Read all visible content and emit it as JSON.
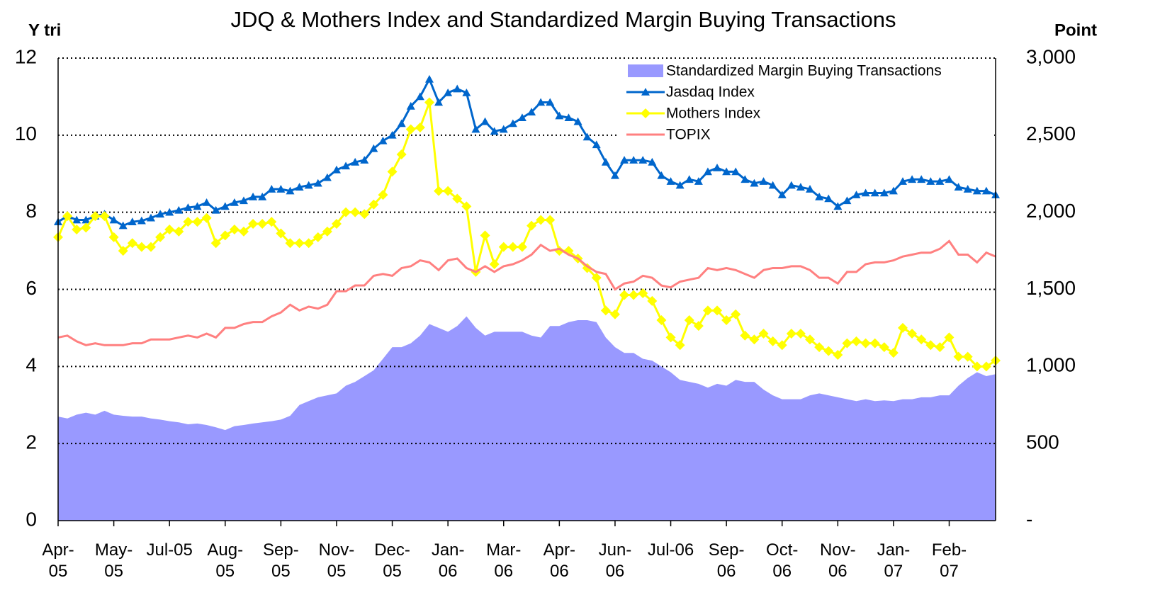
{
  "chart_data": {
    "type": "line",
    "title": "JDQ & Mothers Index and Standardized Margin Buying Transactions",
    "y_label": "Y tri",
    "y2_label": "Point",
    "categories": [
      "Apr-05",
      null,
      null,
      null,
      null,
      null,
      "May-05",
      null,
      null,
      null,
      null,
      null,
      "Jul-05",
      null,
      null,
      null,
      null,
      null,
      "Aug-05",
      null,
      null,
      null,
      null,
      null,
      "Sep-05",
      null,
      null,
      null,
      null,
      null,
      "Nov-05",
      null,
      null,
      null,
      null,
      null,
      "Dec-05",
      null,
      null,
      null,
      null,
      null,
      "Jan-06",
      null,
      null,
      null,
      null,
      null,
      "Mar-06",
      null,
      null,
      null,
      null,
      null,
      "Apr-06",
      null,
      null,
      null,
      null,
      null,
      "Jun-06",
      null,
      null,
      null,
      null,
      null,
      "Jul-06",
      null,
      null,
      null,
      null,
      null,
      "Sep-06",
      null,
      null,
      null,
      null,
      null,
      "Oct-06",
      null,
      null,
      null,
      null,
      null,
      "Nov-06",
      null,
      null,
      null,
      null,
      null,
      "Jan-07",
      null,
      null,
      null,
      null,
      null,
      "Feb-07",
      null,
      null,
      null,
      null,
      null
    ],
    "ylim": [
      0,
      12
    ],
    "yticks": [
      0,
      2,
      4,
      6,
      8,
      10,
      12
    ],
    "y2lim": [
      0,
      3000
    ],
    "y2ticks": [
      {
        "value": 0,
        "label": "-"
      },
      500,
      {
        "value": 1000,
        "label": "1,000"
      },
      {
        "value": 1500,
        "label": "1,500"
      },
      {
        "value": 2000,
        "label": "2,000"
      },
      {
        "value": 2500,
        "label": "2,500"
      },
      {
        "value": 3000,
        "label": "3,000"
      }
    ],
    "grid": true,
    "legend": "upper right",
    "series": [
      {
        "name": "Standardized Margin Buying Transactions",
        "kind": "area",
        "color": "#9999ff",
        "values": [
          2.7,
          2.65,
          2.75,
          2.8,
          2.75,
          2.85,
          2.75,
          2.72,
          2.7,
          2.7,
          2.65,
          2.62,
          2.58,
          2.55,
          2.5,
          2.52,
          2.48,
          2.42,
          2.35,
          2.45,
          2.48,
          2.52,
          2.55,
          2.58,
          2.62,
          2.72,
          3.0,
          3.1,
          3.2,
          3.25,
          3.3,
          3.5,
          3.6,
          3.75,
          3.9,
          4.2,
          4.5,
          4.5,
          4.6,
          4.8,
          5.1,
          5.0,
          4.9,
          5.05,
          5.3,
          5.0,
          4.8,
          4.9,
          4.9,
          4.9,
          4.9,
          4.8,
          4.75,
          5.05,
          5.05,
          5.15,
          5.2,
          5.2,
          5.15,
          4.75,
          4.5,
          4.35,
          4.35,
          4.2,
          4.15,
          4.0,
          3.85,
          3.65,
          3.6,
          3.55,
          3.45,
          3.55,
          3.5,
          3.65,
          3.6,
          3.6,
          3.4,
          3.25,
          3.15,
          3.15,
          3.15,
          3.25,
          3.3,
          3.25,
          3.2,
          3.15,
          3.1,
          3.15,
          3.1,
          3.12,
          3.1,
          3.15,
          3.15,
          3.2,
          3.2,
          3.25,
          3.25,
          3.5,
          3.7,
          3.85,
          3.75,
          3.8
        ]
      },
      {
        "name": "Jasdaq Index",
        "kind": "line",
        "marker": "triangle",
        "axis": "y2",
        "color": "#0066cc",
        "values": [
          1938,
          1975,
          1950,
          1950,
          1975,
          1988,
          1950,
          1913,
          1938,
          1945,
          1963,
          1988,
          2000,
          2013,
          2030,
          2038,
          2063,
          2013,
          2038,
          2063,
          2075,
          2100,
          2100,
          2150,
          2150,
          2138,
          2163,
          2175,
          2188,
          2225,
          2275,
          2300,
          2325,
          2338,
          2413,
          2463,
          2500,
          2575,
          2688,
          2750,
          2863,
          2713,
          2775,
          2800,
          2775,
          2538,
          2588,
          2525,
          2538,
          2575,
          2613,
          2650,
          2713,
          2713,
          2625,
          2613,
          2588,
          2488,
          2438,
          2325,
          2238,
          2338,
          2338,
          2338,
          2325,
          2238,
          2200,
          2175,
          2213,
          2200,
          2263,
          2288,
          2263,
          2263,
          2213,
          2188,
          2200,
          2175,
          2113,
          2175,
          2163,
          2150,
          2100,
          2088,
          2038,
          2075,
          2113,
          2125,
          2125,
          2125,
          2138,
          2200,
          2213,
          2213,
          2200,
          2200,
          2213,
          2163,
          2150,
          2138,
          2138,
          2113
        ]
      },
      {
        "name": "Mothers Index",
        "kind": "line",
        "marker": "diamond",
        "axis": "y2",
        "color": "#ffff00",
        "values": [
          1838,
          1975,
          1888,
          1900,
          1975,
          1975,
          1838,
          1750,
          1800,
          1775,
          1775,
          1838,
          1888,
          1875,
          1938,
          1938,
          1963,
          1800,
          1850,
          1888,
          1875,
          1925,
          1925,
          1938,
          1863,
          1800,
          1800,
          1800,
          1838,
          1875,
          1925,
          2000,
          2000,
          1988,
          2050,
          2113,
          2263,
          2375,
          2538,
          2550,
          2713,
          2138,
          2138,
          2088,
          2038,
          1613,
          1850,
          1663,
          1775,
          1775,
          1775,
          1913,
          1950,
          1950,
          1750,
          1750,
          1700,
          1638,
          1575,
          1363,
          1338,
          1463,
          1463,
          1475,
          1425,
          1300,
          1188,
          1138,
          1300,
          1263,
          1363,
          1363,
          1300,
          1338,
          1200,
          1175,
          1213,
          1163,
          1138,
          1213,
          1213,
          1175,
          1125,
          1100,
          1075,
          1150,
          1163,
          1150,
          1150,
          1125,
          1088,
          1250,
          1213,
          1175,
          1138,
          1125,
          1188,
          1063,
          1063,
          1000,
          1000,
          1038
        ]
      },
      {
        "name": "TOPIX",
        "kind": "line",
        "axis": "y2",
        "color": "#ff8080",
        "values": [
          1188,
          1200,
          1163,
          1138,
          1150,
          1138,
          1138,
          1138,
          1150,
          1150,
          1175,
          1175,
          1175,
          1188,
          1200,
          1188,
          1213,
          1188,
          1250,
          1250,
          1275,
          1288,
          1288,
          1325,
          1350,
          1400,
          1363,
          1388,
          1375,
          1400,
          1488,
          1488,
          1525,
          1525,
          1588,
          1600,
          1588,
          1638,
          1650,
          1688,
          1675,
          1625,
          1688,
          1700,
          1638,
          1613,
          1650,
          1613,
          1650,
          1663,
          1688,
          1725,
          1788,
          1750,
          1763,
          1725,
          1700,
          1650,
          1613,
          1600,
          1500,
          1538,
          1550,
          1588,
          1575,
          1525,
          1513,
          1550,
          1563,
          1575,
          1638,
          1625,
          1638,
          1625,
          1600,
          1575,
          1625,
          1638,
          1638,
          1650,
          1650,
          1625,
          1575,
          1575,
          1538,
          1613,
          1613,
          1663,
          1675,
          1675,
          1688,
          1713,
          1725,
          1738,
          1738,
          1763,
          1813,
          1725,
          1725,
          1675,
          1738,
          1713
        ]
      }
    ]
  }
}
